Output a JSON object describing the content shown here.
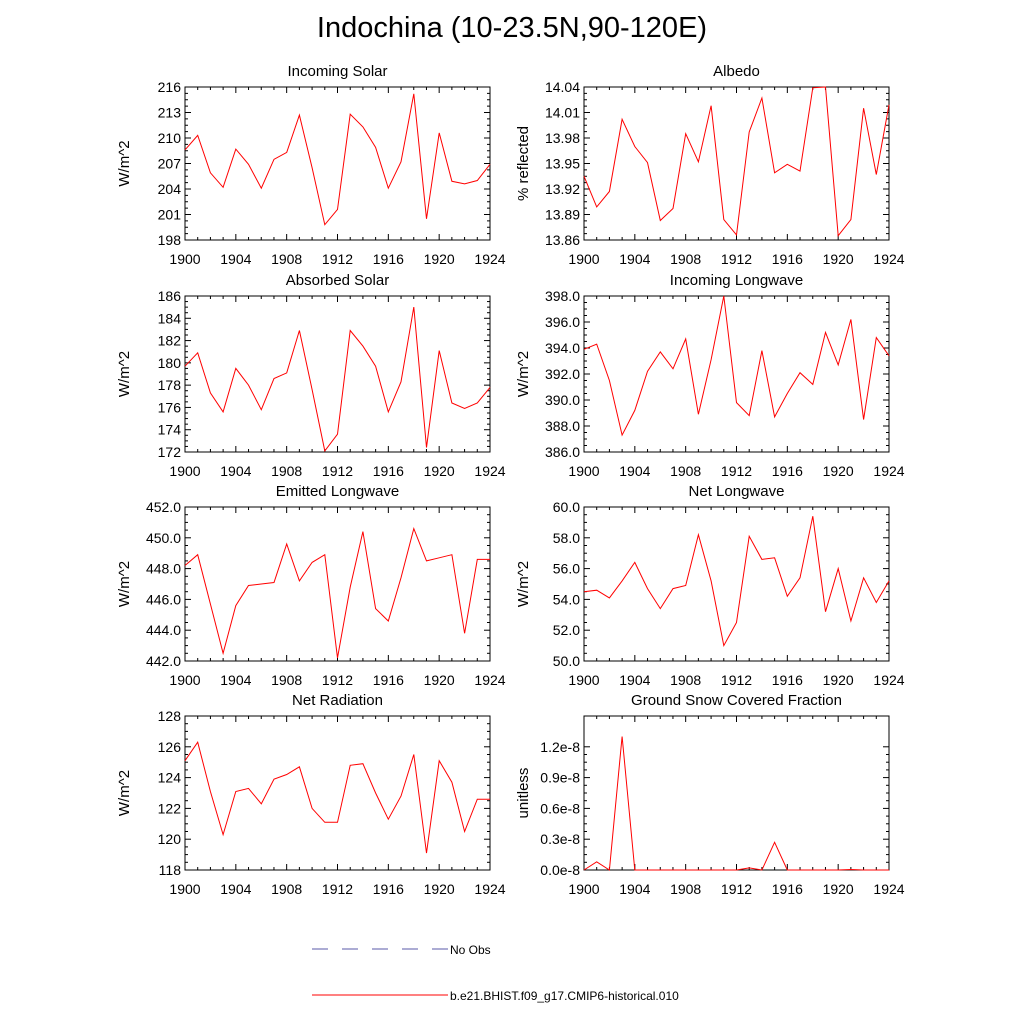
{
  "title": "Indochina (10-23.5N,90-120E)",
  "colors": {
    "model": "#ff0000",
    "obs": "#5a5aa8",
    "axis": "#000000"
  },
  "legend": {
    "obs_label": "No Obs",
    "model_label": "b.e21.BHIST.f09_g17.CMIP6-historical.010"
  },
  "chart_data": [
    {
      "type": "line",
      "title": "Incoming Solar",
      "xlabel": "",
      "ylabel": "W/m^2",
      "xlim": [
        1900,
        1924
      ],
      "ylim": [
        198,
        216
      ],
      "xticks": [
        "1900",
        "1904",
        "1908",
        "1912",
        "1916",
        "1920",
        "1924"
      ],
      "yticks": [
        "198",
        "201",
        "204",
        "207",
        "210",
        "213",
        "216"
      ],
      "series": [
        {
          "name": "b.e21.BHIST.f09_g17.CMIP6-historical.010",
          "x": [
            1900,
            1901,
            1902,
            1903,
            1904,
            1905,
            1906,
            1907,
            1908,
            1909,
            1910,
            1911,
            1912,
            1913,
            1914,
            1915,
            1916,
            1917,
            1918,
            1919,
            1920,
            1921,
            1922,
            1923,
            1924
          ],
          "values": [
            208.6,
            210.3,
            205.9,
            204.2,
            208.7,
            206.9,
            204.1,
            207.5,
            208.3,
            212.7,
            206.5,
            199.8,
            201.6,
            212.8,
            211.3,
            208.9,
            204.1,
            207.2,
            215.2,
            200.5,
            210.6,
            204.9,
            204.6,
            205.0,
            206.9
          ]
        }
      ]
    },
    {
      "type": "line",
      "title": "Albedo",
      "xlabel": "",
      "ylabel": "% reflected",
      "xlim": [
        1900,
        1924
      ],
      "ylim": [
        13.86,
        14.04
      ],
      "xticks": [
        "1900",
        "1904",
        "1908",
        "1912",
        "1916",
        "1920",
        "1924"
      ],
      "yticks": [
        "13.86",
        "13.89",
        "13.92",
        "13.95",
        "13.98",
        "14.01",
        "14.04"
      ],
      "series": [
        {
          "name": "b.e21.BHIST.f09_g17.CMIP6-historical.010",
          "x": [
            1900,
            1901,
            1902,
            1903,
            1904,
            1905,
            1906,
            1907,
            1908,
            1909,
            1910,
            1911,
            1912,
            1913,
            1914,
            1915,
            1916,
            1917,
            1918,
            1919,
            1920,
            1921,
            1922,
            1923,
            1924
          ],
          "values": [
            13.935,
            13.899,
            13.917,
            14.002,
            13.97,
            13.951,
            13.883,
            13.897,
            13.985,
            13.952,
            14.018,
            13.884,
            13.866,
            13.987,
            14.027,
            13.939,
            13.949,
            13.941,
            14.039,
            14.04,
            13.865,
            13.884,
            14.015,
            13.937,
            14.019
          ]
        }
      ]
    },
    {
      "type": "line",
      "title": "Absorbed Solar",
      "xlabel": "",
      "ylabel": "W/m^2",
      "xlim": [
        1900,
        1924
      ],
      "ylim": [
        172,
        186
      ],
      "xticks": [
        "1900",
        "1904",
        "1908",
        "1912",
        "1916",
        "1920",
        "1924"
      ],
      "yticks": [
        "172",
        "174",
        "176",
        "178",
        "180",
        "182",
        "184",
        "186"
      ],
      "series": [
        {
          "name": "b.e21.BHIST.f09_g17.CMIP6-historical.010",
          "x": [
            1900,
            1901,
            1902,
            1903,
            1904,
            1905,
            1906,
            1907,
            1908,
            1909,
            1910,
            1911,
            1912,
            1913,
            1914,
            1915,
            1916,
            1917,
            1918,
            1919,
            1920,
            1921,
            1922,
            1923,
            1924
          ],
          "values": [
            179.7,
            180.9,
            177.3,
            175.6,
            179.5,
            178.0,
            175.8,
            178.6,
            179.1,
            182.9,
            177.6,
            172.1,
            173.6,
            182.9,
            181.5,
            179.7,
            175.6,
            178.3,
            185.0,
            172.4,
            181.1,
            176.4,
            175.9,
            176.4,
            177.8
          ]
        }
      ]
    },
    {
      "type": "line",
      "title": "Incoming Longwave",
      "xlabel": "",
      "ylabel": "W/m^2",
      "xlim": [
        1900,
        1924
      ],
      "ylim": [
        386.0,
        398.0
      ],
      "xticks": [
        "1900",
        "1904",
        "1908",
        "1912",
        "1916",
        "1920",
        "1924"
      ],
      "yticks": [
        "386.0",
        "388.0",
        "390.0",
        "392.0",
        "394.0",
        "396.0",
        "398.0"
      ],
      "series": [
        {
          "name": "b.e21.BHIST.f09_g17.CMIP6-historical.010",
          "x": [
            1900,
            1901,
            1902,
            1903,
            1904,
            1905,
            1906,
            1907,
            1908,
            1909,
            1910,
            1911,
            1912,
            1913,
            1914,
            1915,
            1916,
            1917,
            1918,
            1919,
            1920,
            1921,
            1922,
            1923,
            1924
          ],
          "values": [
            393.9,
            394.3,
            391.5,
            387.3,
            389.2,
            392.2,
            393.7,
            392.4,
            394.7,
            388.9,
            393.1,
            398.0,
            389.8,
            388.8,
            393.8,
            388.7,
            390.5,
            392.1,
            391.2,
            395.2,
            392.7,
            396.2,
            388.5,
            394.8,
            393.4
          ]
        }
      ]
    },
    {
      "type": "line",
      "title": "Emitted Longwave",
      "xlabel": "",
      "ylabel": "W/m^2",
      "xlim": [
        1900,
        1924
      ],
      "ylim": [
        442.0,
        452.0
      ],
      "xticks": [
        "1900",
        "1904",
        "1908",
        "1912",
        "1916",
        "1920",
        "1924"
      ],
      "yticks": [
        "442.0",
        "444.0",
        "446.0",
        "448.0",
        "450.0",
        "452.0"
      ],
      "series": [
        {
          "name": "b.e21.BHIST.f09_g17.CMIP6-historical.010",
          "x": [
            1900,
            1901,
            1902,
            1903,
            1904,
            1905,
            1906,
            1907,
            1908,
            1909,
            1910,
            1911,
            1912,
            1913,
            1914,
            1915,
            1916,
            1917,
            1918,
            1919,
            1920,
            1921,
            1922,
            1923,
            1924
          ],
          "values": [
            448.2,
            448.9,
            445.7,
            442.5,
            445.6,
            446.9,
            447.0,
            447.1,
            449.6,
            447.2,
            448.4,
            448.9,
            442.2,
            446.8,
            450.4,
            445.4,
            444.6,
            447.4,
            450.6,
            448.5,
            448.7,
            448.9,
            443.8,
            448.6,
            448.6
          ]
        }
      ]
    },
    {
      "type": "line",
      "title": "Net Longwave",
      "xlabel": "",
      "ylabel": "W/m^2",
      "xlim": [
        1900,
        1924
      ],
      "ylim": [
        50.0,
        60.0
      ],
      "xticks": [
        "1900",
        "1904",
        "1908",
        "1912",
        "1916",
        "1920",
        "1924"
      ],
      "yticks": [
        "50.0",
        "52.0",
        "54.0",
        "56.0",
        "58.0",
        "60.0"
      ],
      "series": [
        {
          "name": "b.e21.BHIST.f09_g17.CMIP6-historical.010",
          "x": [
            1900,
            1901,
            1902,
            1903,
            1904,
            1905,
            1906,
            1907,
            1908,
            1909,
            1910,
            1911,
            1912,
            1913,
            1914,
            1915,
            1916,
            1917,
            1918,
            1919,
            1920,
            1921,
            1922,
            1923,
            1924
          ],
          "values": [
            54.5,
            54.6,
            54.1,
            55.2,
            56.4,
            54.7,
            53.4,
            54.7,
            54.9,
            58.2,
            55.2,
            51.0,
            52.5,
            58.1,
            56.6,
            56.7,
            54.2,
            55.4,
            59.4,
            53.2,
            56.0,
            52.6,
            55.4,
            53.8,
            55.2
          ]
        }
      ]
    },
    {
      "type": "line",
      "title": "Net Radiation",
      "xlabel": "",
      "ylabel": "W/m^2",
      "xlim": [
        1900,
        1924
      ],
      "ylim": [
        118,
        128
      ],
      "xticks": [
        "1900",
        "1904",
        "1908",
        "1912",
        "1916",
        "1920",
        "1924"
      ],
      "yticks": [
        "118",
        "120",
        "122",
        "124",
        "126",
        "128"
      ],
      "series": [
        {
          "name": "b.e21.BHIST.f09_g17.CMIP6-historical.010",
          "x": [
            1900,
            1901,
            1902,
            1903,
            1904,
            1905,
            1906,
            1907,
            1908,
            1909,
            1910,
            1911,
            1912,
            1913,
            1914,
            1915,
            1916,
            1917,
            1918,
            1919,
            1920,
            1921,
            1922,
            1923,
            1924
          ],
          "values": [
            125.1,
            126.3,
            123.1,
            120.3,
            123.1,
            123.3,
            122.3,
            123.9,
            124.2,
            124.7,
            122.0,
            121.1,
            121.1,
            124.8,
            124.9,
            123.0,
            121.3,
            122.8,
            125.5,
            119.1,
            125.1,
            123.7,
            120.5,
            122.6,
            122.6
          ]
        }
      ]
    },
    {
      "type": "line",
      "title": "Ground Snow Covered Fraction",
      "xlabel": "",
      "ylabel": "unitless",
      "xlim": [
        1900,
        1924
      ],
      "ylim": [
        0,
        1.5e-08
      ],
      "xticks": [
        "1900",
        "1904",
        "1908",
        "1912",
        "1916",
        "1920",
        "1924"
      ],
      "yticks": [
        "0.0e-8",
        "0.3e-8",
        "0.6e-8",
        "0.9e-8",
        "1.2e-8"
      ],
      "ytick_values": [
        0,
        3e-09,
        6e-09,
        9e-09,
        1.2e-08
      ],
      "series": [
        {
          "name": "b.e21.BHIST.f09_g17.CMIP6-historical.010",
          "x": [
            1900,
            1901,
            1902,
            1903,
            1904,
            1905,
            1906,
            1907,
            1908,
            1909,
            1910,
            1911,
            1912,
            1913,
            1914,
            1915,
            1916,
            1917,
            1918,
            1919,
            1920,
            1921,
            1922,
            1923,
            1924
          ],
          "values": [
            0,
            8e-10,
            0,
            1.3e-08,
            0,
            0,
            0,
            0,
            0,
            0,
            0,
            0,
            0,
            2e-10,
            0,
            2.7e-09,
            0,
            0,
            0,
            0,
            0,
            5e-11,
            0,
            0,
            0
          ]
        }
      ]
    }
  ]
}
